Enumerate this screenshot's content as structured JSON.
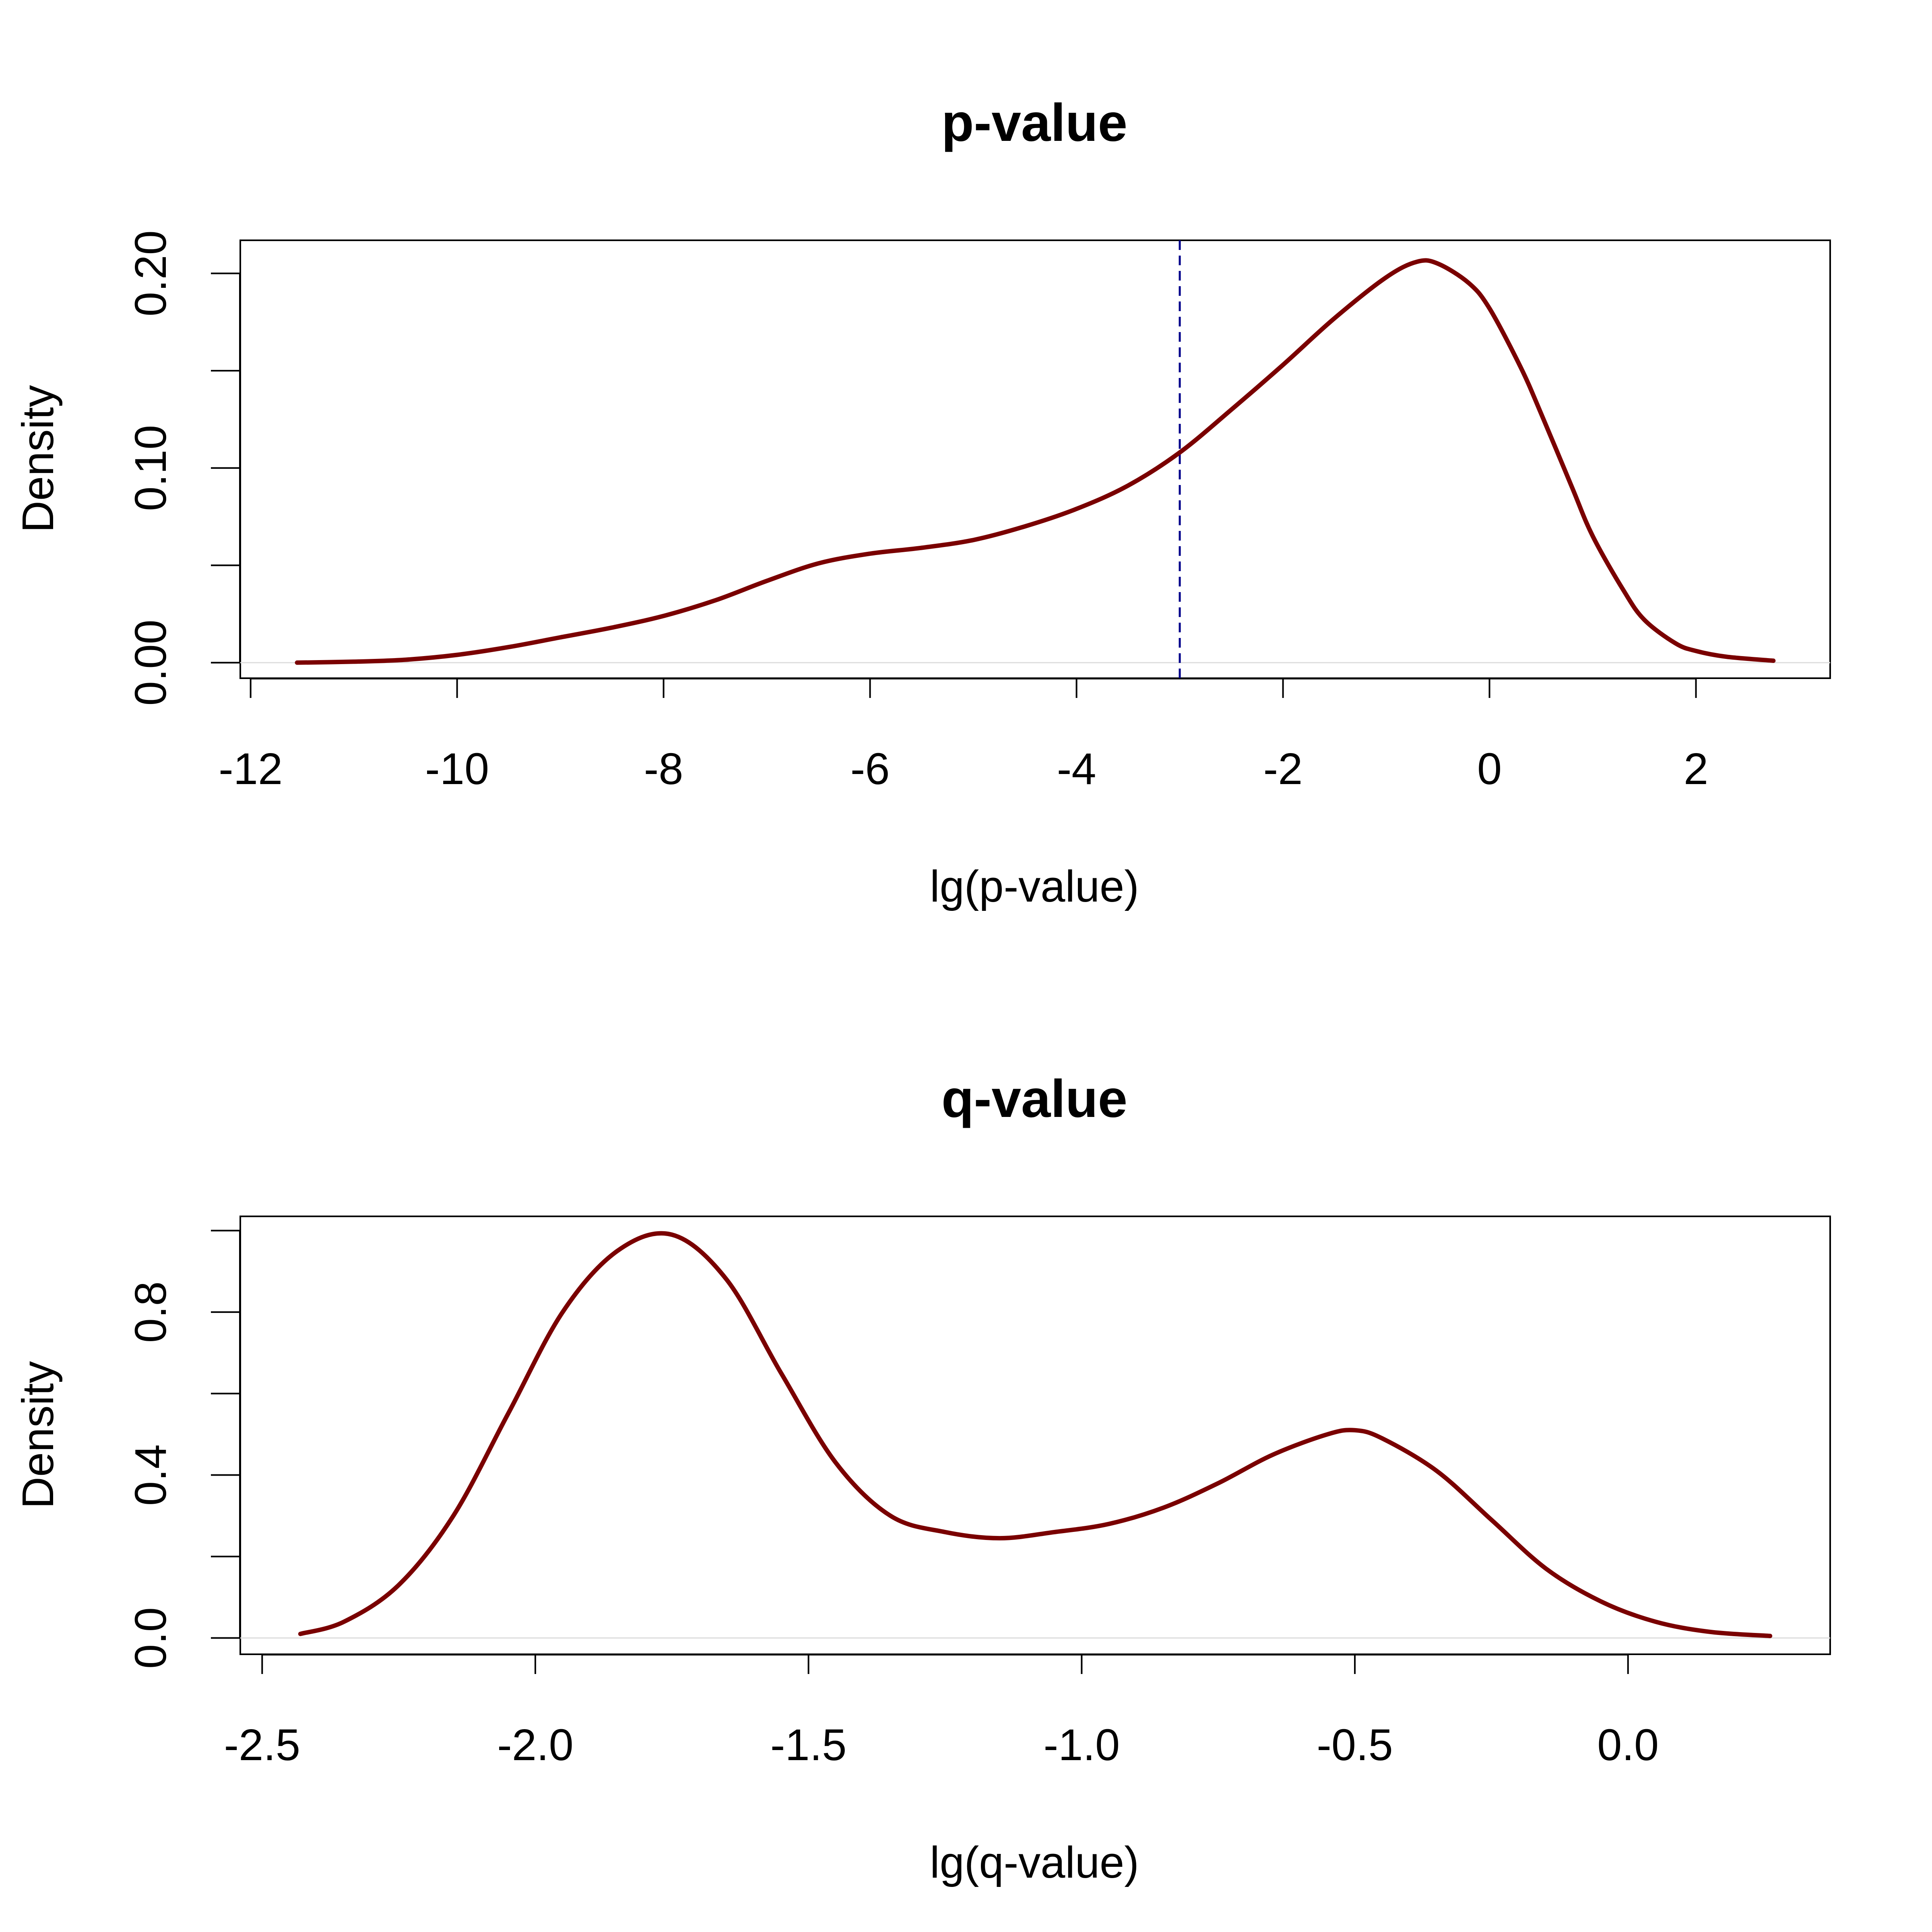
{
  "chart_data": [
    {
      "type": "line",
      "title": "p-value",
      "xlabel": "lg(p-value)",
      "ylabel": "Density",
      "xlim": [
        -12.1,
        3.3
      ],
      "ylim": [
        -0.008,
        0.217
      ],
      "x_ticks": [
        -12,
        -10,
        -8,
        -6,
        -4,
        -2,
        0,
        2
      ],
      "x_tick_labels": [
        "-12",
        "-10",
        "-8",
        "-6",
        "-4",
        "-2",
        "0",
        "2"
      ],
      "y_ticks": [
        0.0,
        0.05,
        0.1,
        0.15,
        0.2
      ],
      "y_tick_labels": [
        "0.00",
        "",
        "0.10",
        "",
        "0.20"
      ],
      "grid": false,
      "line_color": "#7a0000",
      "reference_line": {
        "x": -3.0,
        "color": "#00008b",
        "style": "dashed"
      },
      "series": [
        {
          "x": [
            -11.55,
            -11.0,
            -10.5,
            -10.0,
            -9.5,
            -9.0,
            -8.5,
            -8.0,
            -7.5,
            -7.0,
            -6.5,
            -6.0,
            -5.5,
            -5.0,
            -4.5,
            -4.0,
            -3.5,
            -3.0,
            -2.5,
            -2.0,
            -1.5,
            -1.0,
            -0.7,
            -0.5,
            -0.2,
            0.0,
            0.3,
            0.5,
            0.8,
            1.0,
            1.3,
            1.5,
            1.8,
            2.0,
            2.3,
            2.75
          ],
          "y": [
            0.0,
            0.0005,
            0.0015,
            0.004,
            0.008,
            0.013,
            0.018,
            0.024,
            0.032,
            0.042,
            0.051,
            0.056,
            0.059,
            0.063,
            0.07,
            0.079,
            0.091,
            0.108,
            0.13,
            0.153,
            0.177,
            0.198,
            0.206,
            0.205,
            0.195,
            0.182,
            0.152,
            0.128,
            0.09,
            0.065,
            0.037,
            0.022,
            0.01,
            0.006,
            0.003,
            0.001
          ]
        }
      ]
    },
    {
      "type": "line",
      "title": "q-value",
      "xlabel": "lg(q-value)",
      "ylabel": "Density",
      "xlim": [
        -2.54,
        0.37
      ],
      "ylim": [
        -0.04,
        1.035
      ],
      "x_ticks": [
        -2.5,
        -2.0,
        -1.5,
        -1.0,
        -0.5,
        0.0
      ],
      "x_tick_labels": [
        "-2.5",
        "-2.0",
        "-1.5",
        "-1.0",
        "-0.5",
        "0.0"
      ],
      "y_ticks": [
        0.0,
        0.2,
        0.4,
        0.6,
        0.8,
        1.0
      ],
      "y_tick_labels": [
        "0.0",
        "",
        "0.4",
        "",
        "0.8",
        ""
      ],
      "grid": false,
      "line_color": "#7a0000",
      "series": [
        {
          "x": [
            -2.43,
            -2.35,
            -2.25,
            -2.15,
            -2.05,
            -1.95,
            -1.85,
            -1.75,
            -1.65,
            -1.55,
            -1.45,
            -1.35,
            -1.25,
            -1.15,
            -1.05,
            -0.95,
            -0.85,
            -0.75,
            -0.65,
            -0.55,
            -0.5,
            -0.45,
            -0.35,
            -0.25,
            -0.15,
            -0.05,
            0.05,
            0.15,
            0.26
          ],
          "y": [
            0.01,
            0.04,
            0.13,
            0.3,
            0.55,
            0.8,
            0.95,
            0.99,
            0.88,
            0.65,
            0.43,
            0.3,
            0.26,
            0.245,
            0.26,
            0.28,
            0.32,
            0.38,
            0.45,
            0.5,
            0.51,
            0.49,
            0.41,
            0.29,
            0.17,
            0.09,
            0.04,
            0.015,
            0.005
          ]
        }
      ]
    }
  ]
}
